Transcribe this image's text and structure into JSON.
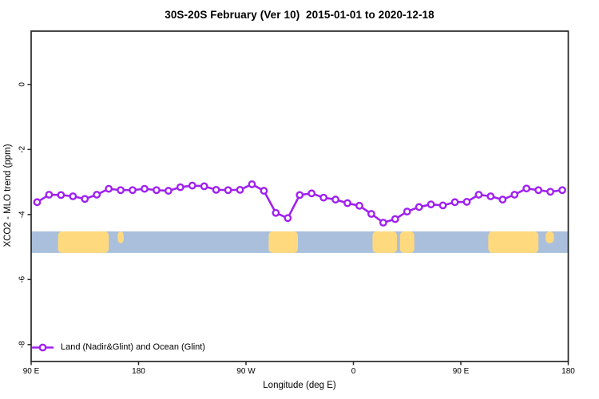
{
  "chart_data": {
    "type": "line",
    "title": "30S-20S February (Ver 10)  2015-01-01 to 2020-12-18",
    "xlabel": "Longitude (deg E)",
    "ylabel": "XCO2 - MLO trend (ppm)",
    "legend": {
      "position": "bottom-left",
      "entries": [
        "Land (Nadir&Glint) and Ocean (Glint)"
      ]
    },
    "axes": {
      "deg_range": [
        90,
        540
      ],
      "ylim": [
        -8.52,
        1.64
      ],
      "grid": false,
      "x_ticks": [
        {
          "deg": 90,
          "label": "90 E"
        },
        {
          "deg": 180,
          "label": "180"
        },
        {
          "deg": 270,
          "label": "90 W"
        },
        {
          "deg": 360,
          "label": "0"
        },
        {
          "deg": 450,
          "label": "90 E"
        },
        {
          "deg": 540,
          "label": "180"
        }
      ],
      "y_ticks": [
        {
          "value": 0,
          "label": "0"
        },
        {
          "value": -2,
          "label": "-2"
        },
        {
          "value": -4,
          "label": "-4"
        },
        {
          "value": -6,
          "label": "-6"
        },
        {
          "value": -8,
          "label": "-8"
        }
      ]
    },
    "colors": {
      "line": "#A020F0",
      "marker_fill": "#ffffff",
      "ocean": "#A9BFDC",
      "land": "#FFD97E",
      "axis": "#262626",
      "text": "#000000"
    },
    "series": [
      {
        "name": "Land (Nadir&Glint) and Ocean (Glint)",
        "marker": "open-circle",
        "x_deg": [
          95,
          105,
          115,
          125,
          135,
          145,
          155,
          165,
          175,
          185,
          195,
          205,
          215,
          225,
          235,
          245,
          255,
          265,
          275,
          285,
          295,
          305,
          315,
          325,
          335,
          345,
          355,
          365,
          375,
          385,
          395,
          405,
          415,
          425,
          435,
          445,
          455,
          465,
          475,
          485,
          495,
          505,
          515,
          525,
          535
        ],
        "y_ppm": [
          -3.62,
          -3.39,
          -3.4,
          -3.44,
          -3.52,
          -3.39,
          -3.21,
          -3.25,
          -3.25,
          -3.21,
          -3.25,
          -3.27,
          -3.16,
          -3.11,
          -3.13,
          -3.24,
          -3.25,
          -3.24,
          -3.07,
          -3.27,
          -3.95,
          -4.11,
          -3.4,
          -3.35,
          -3.48,
          -3.54,
          -3.65,
          -3.73,
          -3.98,
          -4.25,
          -4.14,
          -3.91,
          -3.77,
          -3.69,
          -3.72,
          -3.62,
          -3.61,
          -3.39,
          -3.44,
          -3.54,
          -3.39,
          -3.2,
          -3.25,
          -3.3,
          -3.25
        ]
      }
    ],
    "surface_band": {
      "description": "land-ocean strip",
      "y_top_ppm": -4.52,
      "y_bottom_ppm": -5.18,
      "land_patches_deg": [
        {
          "from": 112.5,
          "to": 155,
          "extent": "full"
        },
        {
          "from": 162.5,
          "to": 167.5,
          "extent": "top"
        },
        {
          "from": 289,
          "to": 313.5,
          "extent": "full"
        },
        {
          "from": 376,
          "to": 396.5,
          "extent": "full"
        },
        {
          "from": 399,
          "to": 411,
          "extent": "full"
        },
        {
          "from": 473,
          "to": 515,
          "extent": "full"
        },
        {
          "from": 521,
          "to": 528,
          "extent": "top"
        }
      ]
    }
  }
}
